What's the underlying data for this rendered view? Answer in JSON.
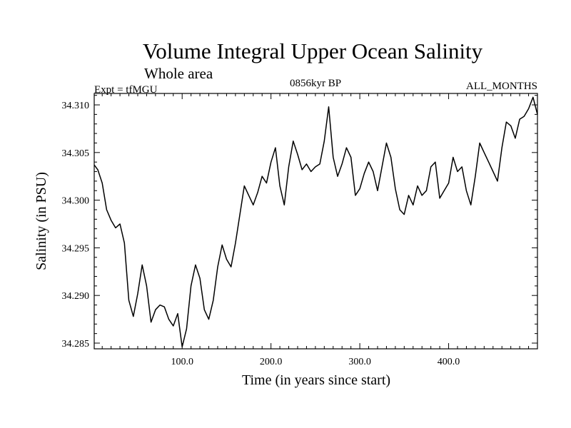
{
  "chart_data": {
    "type": "line",
    "title": "Volume Integral Upper Ocean Salinity",
    "subtitle": "Whole area",
    "header_left": "Expt = tfMGU",
    "header_center": "0856kyr BP",
    "header_right": "ALL_MONTHS",
    "xlabel": "Time (in years since start)",
    "ylabel": "Salinity (in PSU)",
    "xlim": [
      1,
      500
    ],
    "ylim": [
      34.2844,
      34.3112
    ],
    "x_ticks": [
      100,
      200,
      300,
      400
    ],
    "x_tick_labels": [
      "100.0",
      "200.0",
      "300.0",
      "400.0"
    ],
    "y_ticks": [
      34.285,
      34.29,
      34.295,
      34.3,
      34.305,
      34.31
    ],
    "y_tick_labels": [
      "34.285",
      "34.290",
      "34.295",
      "34.300",
      "34.305",
      "34.310"
    ],
    "series": [
      {
        "name": "salinity",
        "x": [
          1,
          5,
          10,
          15,
          20,
          25,
          30,
          35,
          40,
          45,
          50,
          55,
          60,
          65,
          70,
          75,
          80,
          85,
          90,
          95,
          100,
          105,
          110,
          115,
          120,
          125,
          130,
          135,
          140,
          145,
          150,
          155,
          160,
          165,
          170,
          175,
          180,
          185,
          190,
          195,
          200,
          205,
          210,
          215,
          220,
          225,
          230,
          235,
          240,
          245,
          250,
          255,
          260,
          265,
          270,
          275,
          280,
          285,
          290,
          295,
          300,
          305,
          310,
          315,
          320,
          325,
          330,
          335,
          340,
          345,
          350,
          355,
          360,
          365,
          370,
          375,
          380,
          385,
          390,
          395,
          400,
          405,
          410,
          415,
          420,
          425,
          430,
          435,
          440,
          445,
          450,
          455,
          460,
          465,
          470,
          475,
          480,
          485,
          490,
          495,
          500
        ],
        "values": [
          34.3037,
          34.3032,
          34.3018,
          34.299,
          34.2979,
          34.2971,
          34.2975,
          34.2955,
          34.2895,
          34.2878,
          34.2902,
          34.2932,
          34.291,
          34.2872,
          34.2885,
          34.289,
          34.2888,
          34.2875,
          34.2868,
          34.2881,
          34.2846,
          34.2865,
          34.291,
          34.2932,
          34.2918,
          34.2885,
          34.2875,
          34.2895,
          34.293,
          34.2953,
          34.2938,
          34.293,
          34.2955,
          34.2985,
          34.3015,
          34.3005,
          34.2995,
          34.3008,
          34.3025,
          34.3018,
          34.304,
          34.3055,
          34.3015,
          34.2995,
          34.3035,
          34.3062,
          34.3048,
          34.3032,
          34.3038,
          34.303,
          34.3035,
          34.3038,
          34.3062,
          34.3098,
          34.3045,
          34.3025,
          34.3038,
          34.3055,
          34.3045,
          34.3005,
          34.3012,
          34.3028,
          34.304,
          34.303,
          34.301,
          34.3035,
          34.306,
          34.3045,
          34.3012,
          34.299,
          34.2985,
          34.3005,
          34.2995,
          34.3015,
          34.3005,
          34.301,
          34.3035,
          34.304,
          34.3002,
          34.301,
          34.3018,
          34.3045,
          34.303,
          34.3035,
          34.301,
          34.2995,
          34.3025,
          34.306,
          34.305,
          34.304,
          34.303,
          34.302,
          34.3055,
          34.3082,
          34.3078,
          34.3065,
          34.3085,
          34.3088,
          34.3096,
          34.3108,
          34.309
        ]
      }
    ]
  }
}
